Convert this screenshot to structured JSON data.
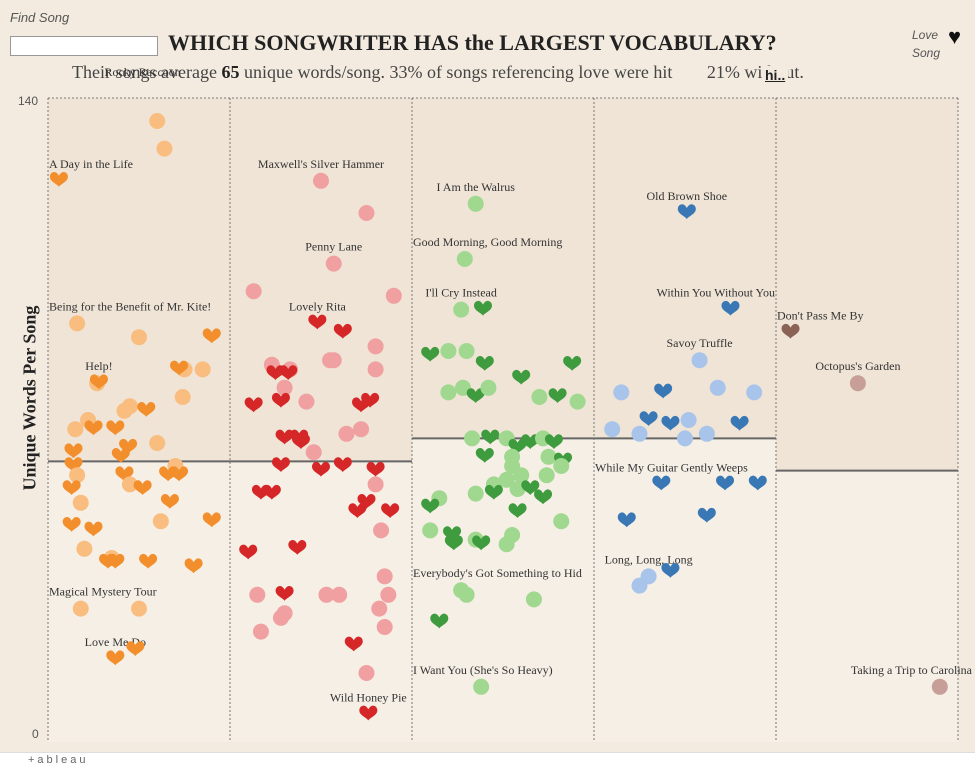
{
  "find_song": {
    "label": "Find Song",
    "value": ""
  },
  "title": "WHICH SONGWRITER HAS the LARGEST VOCABULARY?",
  "subtitle": {
    "pre": "Their songs average ",
    "avg": "65",
    "post": " unique words/song. 33% of songs referencing love were hit",
    "tail": "21% without."
  },
  "tooltip_tag": "hi..",
  "legend": {
    "line1": "Love",
    "line2": "Song"
  },
  "brand": "+ableau",
  "colors": {
    "bg": "#f3ebe0",
    "panel_upper": "#efe4d6",
    "panel_lower": "#f6efe6"
  },
  "chart_data": {
    "type": "scatter",
    "ylabel": "Unique Words Per Song",
    "ylim": [
      0,
      140
    ],
    "yticks": [
      0,
      140
    ],
    "grid": "dotted vertical panel borders",
    "legend_placement": "top-right",
    "panels": [
      {
        "name": "",
        "color": "#f28e2b",
        "light": "#f9bd80",
        "avg": 61,
        "points": [
          {
            "x": 0.06,
            "y": 122,
            "love": true,
            "label": "A Day in the Life"
          },
          {
            "x": 0.6,
            "y": 135
          },
          {
            "x": 0.64,
            "y": 129
          },
          {
            "x": 0.52,
            "y": 142,
            "label": "Rocky Raccoon",
            "label_only": true
          },
          {
            "x": 0.16,
            "y": 91,
            "label": "Being for the Benefit of Mr. Kite!"
          },
          {
            "x": 0.5,
            "y": 88
          },
          {
            "x": 0.9,
            "y": 88,
            "love": true
          },
          {
            "x": 0.27,
            "y": 78
          },
          {
            "x": 0.75,
            "y": 81
          },
          {
            "x": 0.72,
            "y": 81,
            "love": true
          },
          {
            "x": 0.85,
            "y": 81
          },
          {
            "x": 0.28,
            "y": 78,
            "love": true,
            "label": "Help!"
          },
          {
            "x": 0.42,
            "y": 72
          },
          {
            "x": 0.45,
            "y": 73
          },
          {
            "x": 0.74,
            "y": 75
          },
          {
            "x": 0.54,
            "y": 72,
            "love": true
          },
          {
            "x": 0.15,
            "y": 68
          },
          {
            "x": 0.22,
            "y": 70
          },
          {
            "x": 0.25,
            "y": 68,
            "love": true
          },
          {
            "x": 0.37,
            "y": 68,
            "love": true
          },
          {
            "x": 0.6,
            "y": 65
          },
          {
            "x": 0.44,
            "y": 64,
            "love": true
          },
          {
            "x": 0.4,
            "y": 62,
            "love": true
          },
          {
            "x": 0.14,
            "y": 63,
            "love": true
          },
          {
            "x": 0.7,
            "y": 60
          },
          {
            "x": 0.66,
            "y": 58,
            "love": true
          },
          {
            "x": 0.14,
            "y": 60,
            "love": true
          },
          {
            "x": 0.16,
            "y": 58
          },
          {
            "x": 0.42,
            "y": 58,
            "love": true
          },
          {
            "x": 0.72,
            "y": 58,
            "love": true
          },
          {
            "x": 0.13,
            "y": 55,
            "love": true
          },
          {
            "x": 0.45,
            "y": 56
          },
          {
            "x": 0.52,
            "y": 55,
            "love": true
          },
          {
            "x": 0.67,
            "y": 52,
            "love": true
          },
          {
            "x": 0.18,
            "y": 52
          },
          {
            "x": 0.62,
            "y": 48
          },
          {
            "x": 0.13,
            "y": 47,
            "love": true
          },
          {
            "x": 0.25,
            "y": 46,
            "love": true
          },
          {
            "x": 0.9,
            "y": 48,
            "love": true
          },
          {
            "x": 0.2,
            "y": 42
          },
          {
            "x": 0.35,
            "y": 40
          },
          {
            "x": 0.33,
            "y": 39,
            "love": true
          },
          {
            "x": 0.37,
            "y": 39,
            "love": true
          },
          {
            "x": 0.55,
            "y": 39,
            "love": true
          },
          {
            "x": 0.8,
            "y": 38,
            "love": true
          },
          {
            "x": 0.18,
            "y": 29,
            "label": "Magical Mystery Tour"
          },
          {
            "x": 0.5,
            "y": 29
          },
          {
            "x": 0.37,
            "y": 18,
            "love": true,
            "label": "Love Me Do"
          },
          {
            "x": 0.48,
            "y": 20,
            "love": true
          }
        ]
      },
      {
        "name": "",
        "color": "#d62728",
        "light": "#f0a0a0",
        "avg": 61,
        "points": [
          {
            "x": 0.5,
            "y": 122,
            "label": "Maxwell's Silver Hammer"
          },
          {
            "x": 0.75,
            "y": 115
          },
          {
            "x": 0.57,
            "y": 104,
            "label": "Penny Lane"
          },
          {
            "x": 0.13,
            "y": 98
          },
          {
            "x": 0.9,
            "y": 97
          },
          {
            "x": 0.48,
            "y": 91,
            "love": true,
            "label": "Lovely Rita"
          },
          {
            "x": 0.62,
            "y": 89,
            "love": true
          },
          {
            "x": 0.8,
            "y": 86
          },
          {
            "x": 0.23,
            "y": 82
          },
          {
            "x": 0.33,
            "y": 81
          },
          {
            "x": 0.55,
            "y": 83
          },
          {
            "x": 0.57,
            "y": 83
          },
          {
            "x": 0.25,
            "y": 80,
            "love": true
          },
          {
            "x": 0.32,
            "y": 80,
            "love": true
          },
          {
            "x": 0.8,
            "y": 81
          },
          {
            "x": 0.3,
            "y": 77
          },
          {
            "x": 0.42,
            "y": 74
          },
          {
            "x": 0.13,
            "y": 73,
            "love": true
          },
          {
            "x": 0.28,
            "y": 74,
            "love": true
          },
          {
            "x": 0.72,
            "y": 73,
            "love": true
          },
          {
            "x": 0.77,
            "y": 74,
            "love": true
          },
          {
            "x": 0.64,
            "y": 67
          },
          {
            "x": 0.72,
            "y": 68
          },
          {
            "x": 0.3,
            "y": 66,
            "love": true
          },
          {
            "x": 0.38,
            "y": 66,
            "love": true
          },
          {
            "x": 0.39,
            "y": 65,
            "love": true
          },
          {
            "x": 0.46,
            "y": 63
          },
          {
            "x": 0.28,
            "y": 60,
            "love": true
          },
          {
            "x": 0.5,
            "y": 59,
            "love": true
          },
          {
            "x": 0.62,
            "y": 60,
            "love": true
          },
          {
            "x": 0.8,
            "y": 59,
            "love": true
          },
          {
            "x": 0.8,
            "y": 56
          },
          {
            "x": 0.17,
            "y": 54,
            "love": true
          },
          {
            "x": 0.23,
            "y": 54,
            "love": true
          },
          {
            "x": 0.7,
            "y": 50,
            "love": true
          },
          {
            "x": 0.75,
            "y": 52,
            "love": true
          },
          {
            "x": 0.88,
            "y": 50,
            "love": true
          },
          {
            "x": 0.83,
            "y": 46
          },
          {
            "x": 0.37,
            "y": 42,
            "love": true
          },
          {
            "x": 0.1,
            "y": 41,
            "love": true
          },
          {
            "x": 0.85,
            "y": 36
          },
          {
            "x": 0.15,
            "y": 32
          },
          {
            "x": 0.3,
            "y": 32,
            "love": true
          },
          {
            "x": 0.53,
            "y": 32
          },
          {
            "x": 0.6,
            "y": 32
          },
          {
            "x": 0.87,
            "y": 32
          },
          {
            "x": 0.3,
            "y": 28
          },
          {
            "x": 0.28,
            "y": 27
          },
          {
            "x": 0.82,
            "y": 29
          },
          {
            "x": 0.85,
            "y": 25
          },
          {
            "x": 0.17,
            "y": 24
          },
          {
            "x": 0.68,
            "y": 21,
            "love": true
          },
          {
            "x": 0.75,
            "y": 15
          },
          {
            "x": 0.76,
            "y": 6,
            "love": true,
            "label": "Wild Honey Pie"
          }
        ]
      },
      {
        "name": "",
        "color": "#3e9b3e",
        "light": "#a0d890",
        "avg": 66,
        "points": [
          {
            "x": 0.35,
            "y": 117,
            "label": "I Am the Walrus"
          },
          {
            "x": 0.29,
            "y": 105,
            "label": "Good Morning, Good Morning"
          },
          {
            "x": 0.27,
            "y": 94,
            "label": "I'll Cry Instead"
          },
          {
            "x": 0.39,
            "y": 94,
            "love": true
          },
          {
            "x": 0.1,
            "y": 84,
            "love": true
          },
          {
            "x": 0.2,
            "y": 85
          },
          {
            "x": 0.3,
            "y": 85
          },
          {
            "x": 0.4,
            "y": 82,
            "love": true
          },
          {
            "x": 0.88,
            "y": 82,
            "love": true
          },
          {
            "x": 0.6,
            "y": 79,
            "love": true
          },
          {
            "x": 0.2,
            "y": 76
          },
          {
            "x": 0.28,
            "y": 77
          },
          {
            "x": 0.35,
            "y": 75,
            "love": true
          },
          {
            "x": 0.42,
            "y": 77
          },
          {
            "x": 0.7,
            "y": 75
          },
          {
            "x": 0.8,
            "y": 75,
            "love": true
          },
          {
            "x": 0.91,
            "y": 74
          },
          {
            "x": 0.33,
            "y": 66
          },
          {
            "x": 0.43,
            "y": 66,
            "love": true
          },
          {
            "x": 0.52,
            "y": 66
          },
          {
            "x": 0.58,
            "y": 64,
            "love": true
          },
          {
            "x": 0.65,
            "y": 65,
            "love": true
          },
          {
            "x": 0.72,
            "y": 66
          },
          {
            "x": 0.78,
            "y": 65,
            "love": true
          },
          {
            "x": 0.4,
            "y": 62,
            "love": true
          },
          {
            "x": 0.55,
            "y": 62
          },
          {
            "x": 0.75,
            "y": 62
          },
          {
            "x": 0.83,
            "y": 61,
            "love": true
          },
          {
            "x": 0.55,
            "y": 60
          },
          {
            "x": 0.6,
            "y": 58
          },
          {
            "x": 0.74,
            "y": 58
          },
          {
            "x": 0.82,
            "y": 60
          },
          {
            "x": 0.45,
            "y": 56
          },
          {
            "x": 0.52,
            "y": 57
          },
          {
            "x": 0.58,
            "y": 55
          },
          {
            "x": 0.65,
            "y": 55,
            "love": true
          },
          {
            "x": 0.15,
            "y": 53
          },
          {
            "x": 0.35,
            "y": 54
          },
          {
            "x": 0.45,
            "y": 54,
            "love": true
          },
          {
            "x": 0.72,
            "y": 53,
            "love": true
          },
          {
            "x": 0.1,
            "y": 51,
            "love": true
          },
          {
            "x": 0.58,
            "y": 50,
            "love": true
          },
          {
            "x": 0.82,
            "y": 48
          },
          {
            "x": 0.1,
            "y": 46
          },
          {
            "x": 0.22,
            "y": 45,
            "love": true
          },
          {
            "x": 0.23,
            "y": 43,
            "love": true
          },
          {
            "x": 0.35,
            "y": 44
          },
          {
            "x": 0.38,
            "y": 43,
            "love": true
          },
          {
            "x": 0.52,
            "y": 43
          },
          {
            "x": 0.55,
            "y": 45
          },
          {
            "x": 0.27,
            "y": 33,
            "label": "Everybody's Got Something to Hid"
          },
          {
            "x": 0.3,
            "y": 32
          },
          {
            "x": 0.67,
            "y": 31
          },
          {
            "x": 0.15,
            "y": 26,
            "love": true
          },
          {
            "x": 0.38,
            "y": 12,
            "label": "I Want You (She's So Heavy)"
          }
        ]
      },
      {
        "name": "",
        "color": "#3a78b5",
        "light": "#a9c4ea",
        "avg": 66,
        "points": [
          {
            "x": 0.51,
            "y": 115,
            "love": true,
            "label": "Old Brown Shoe"
          },
          {
            "x": 0.75,
            "y": 94,
            "love": true,
            "label": "Within You Without You"
          },
          {
            "x": 0.58,
            "y": 83,
            "label": "Savoy Truffle"
          },
          {
            "x": 0.15,
            "y": 76
          },
          {
            "x": 0.38,
            "y": 76,
            "love": true
          },
          {
            "x": 0.68,
            "y": 77
          },
          {
            "x": 0.88,
            "y": 76
          },
          {
            "x": 0.1,
            "y": 68
          },
          {
            "x": 0.3,
            "y": 70,
            "love": true
          },
          {
            "x": 0.42,
            "y": 69,
            "love": true
          },
          {
            "x": 0.52,
            "y": 70
          },
          {
            "x": 0.62,
            "y": 67
          },
          {
            "x": 0.8,
            "y": 69,
            "love": true
          },
          {
            "x": 0.25,
            "y": 67
          },
          {
            "x": 0.5,
            "y": 66
          },
          {
            "x": 0.37,
            "y": 56,
            "love": true,
            "label": "While My Guitar Gently Weeps"
          },
          {
            "x": 0.72,
            "y": 56,
            "love": true
          },
          {
            "x": 0.9,
            "y": 56,
            "love": true
          },
          {
            "x": 0.18,
            "y": 48,
            "love": true
          },
          {
            "x": 0.62,
            "y": 49,
            "love": true
          },
          {
            "x": 0.3,
            "y": 36,
            "label": "Long, Long, Long"
          },
          {
            "x": 0.42,
            "y": 37,
            "love": true
          },
          {
            "x": 0.25,
            "y": 34
          }
        ]
      },
      {
        "name": "",
        "color": "#8b6355",
        "light": "#c89e98",
        "avg": 59,
        "points": [
          {
            "x": 0.08,
            "y": 89,
            "love": true,
            "label": "Don't Pass Me By"
          },
          {
            "x": 0.45,
            "y": 78,
            "label": "Octopus's Garden"
          },
          {
            "x": 0.9,
            "y": 12,
            "label": "Taking a Trip to Carolina"
          }
        ]
      }
    ]
  }
}
